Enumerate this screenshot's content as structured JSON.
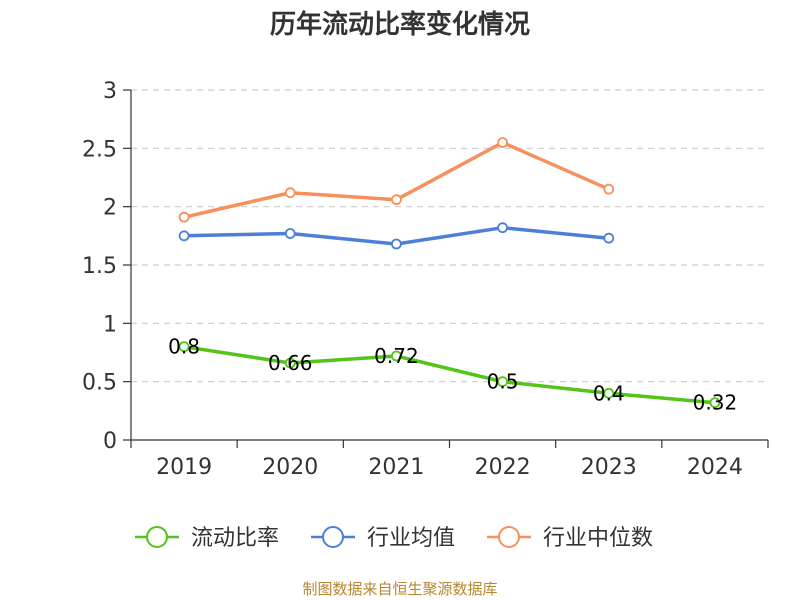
{
  "chart_data": {
    "type": "line",
    "title": "历年流动比率变化情况",
    "categories": [
      "2019",
      "2020",
      "2021",
      "2022",
      "2023",
      "2024"
    ],
    "ylim": [
      0,
      3
    ],
    "yticks": [
      "0",
      "0.5",
      "1",
      "1.5",
      "2",
      "2.5",
      "3"
    ],
    "grid": true,
    "legend_position": "bottom",
    "series": [
      {
        "key": "current-ratio",
        "name": "流动比率",
        "color": "#52c41a",
        "values": [
          0.8,
          0.66,
          0.72,
          0.5,
          0.4,
          0.32
        ],
        "labels": [
          "0.8",
          "0.66",
          "0.72",
          "0.5",
          "0.4",
          "0.32"
        ],
        "show_labels": true
      },
      {
        "key": "industry-average",
        "name": "行业均值",
        "color": "#4e7fd8",
        "values": [
          1.75,
          1.77,
          1.68,
          1.82,
          1.73,
          null
        ],
        "show_labels": false
      },
      {
        "key": "industry-median",
        "name": "行业中位数",
        "color": "#f7905a",
        "values": [
          1.91,
          2.12,
          2.06,
          2.55,
          2.15,
          null
        ],
        "show_labels": false
      }
    ],
    "source": "制图数据来自恒生聚源数据库"
  }
}
